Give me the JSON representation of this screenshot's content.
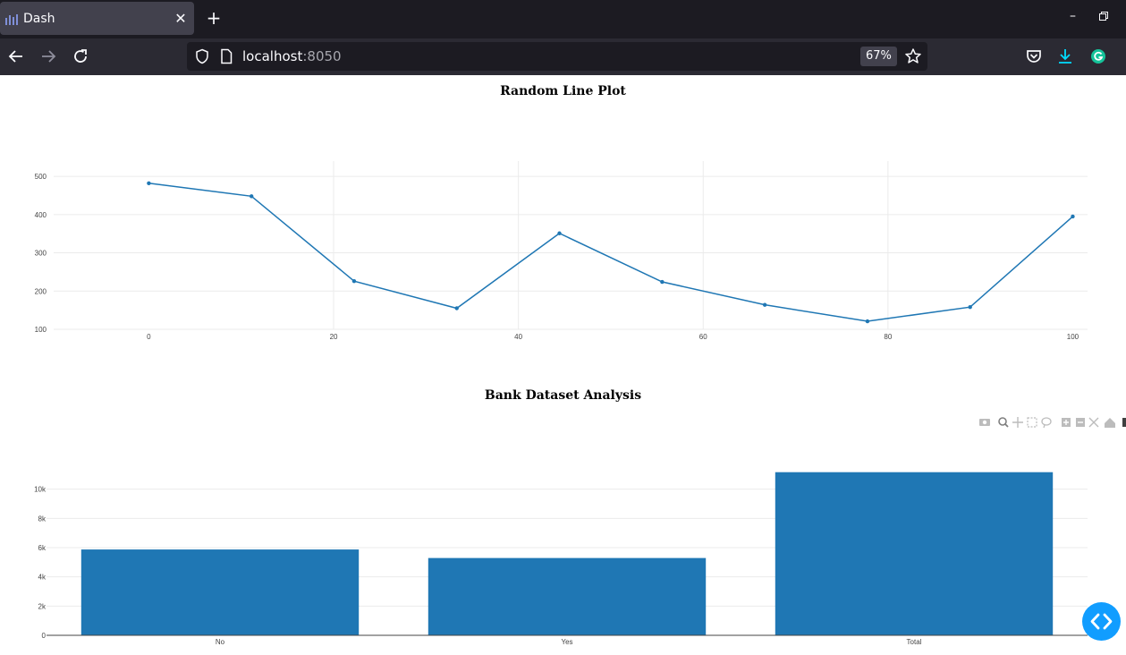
{
  "browser": {
    "tab_title": "Dash",
    "url_host": "localhost",
    "url_port": ":8050",
    "zoom": "67%",
    "colors": {
      "titlebar": "#1c1b22",
      "toolbar": "#2b2a33",
      "accent": "#1f77b4"
    }
  },
  "charts": {
    "line_title": "Random Line Plot",
    "bar_title": "Bank Dataset Analysis"
  },
  "chart_data": [
    {
      "type": "line",
      "title": "Random Line Plot",
      "x": [
        0,
        11.11,
        22.22,
        33.33,
        44.44,
        55.56,
        66.67,
        77.78,
        88.89,
        100
      ],
      "y": [
        482,
        448,
        226,
        155,
        351,
        224,
        164,
        121,
        158,
        395
      ],
      "x_ticks": [
        0,
        20,
        40,
        60,
        80,
        100
      ],
      "x_tick_labels": [
        "0",
        "20",
        "40",
        "60",
        "80",
        "100"
      ],
      "y_ticks": [
        100,
        200,
        300,
        400,
        500
      ],
      "y_tick_labels": [
        "100",
        "200",
        "300",
        "400",
        "500"
      ],
      "xlim": [
        -10.3,
        101.6
      ],
      "ylim": [
        100,
        540
      ],
      "grid": true,
      "color": "#1f77b4"
    },
    {
      "type": "bar",
      "title": "Bank Dataset Analysis",
      "categories": [
        "No",
        "Yes",
        "Total"
      ],
      "values": [
        5873,
        5289,
        11162
      ],
      "y_ticks": [
        0,
        2000,
        4000,
        6000,
        8000,
        10000
      ],
      "y_tick_labels": [
        "0",
        "2k",
        "4k",
        "6k",
        "8k",
        "10k"
      ],
      "ylim": [
        0,
        12000
      ],
      "grid": true,
      "color": "#1f77b4"
    }
  ]
}
